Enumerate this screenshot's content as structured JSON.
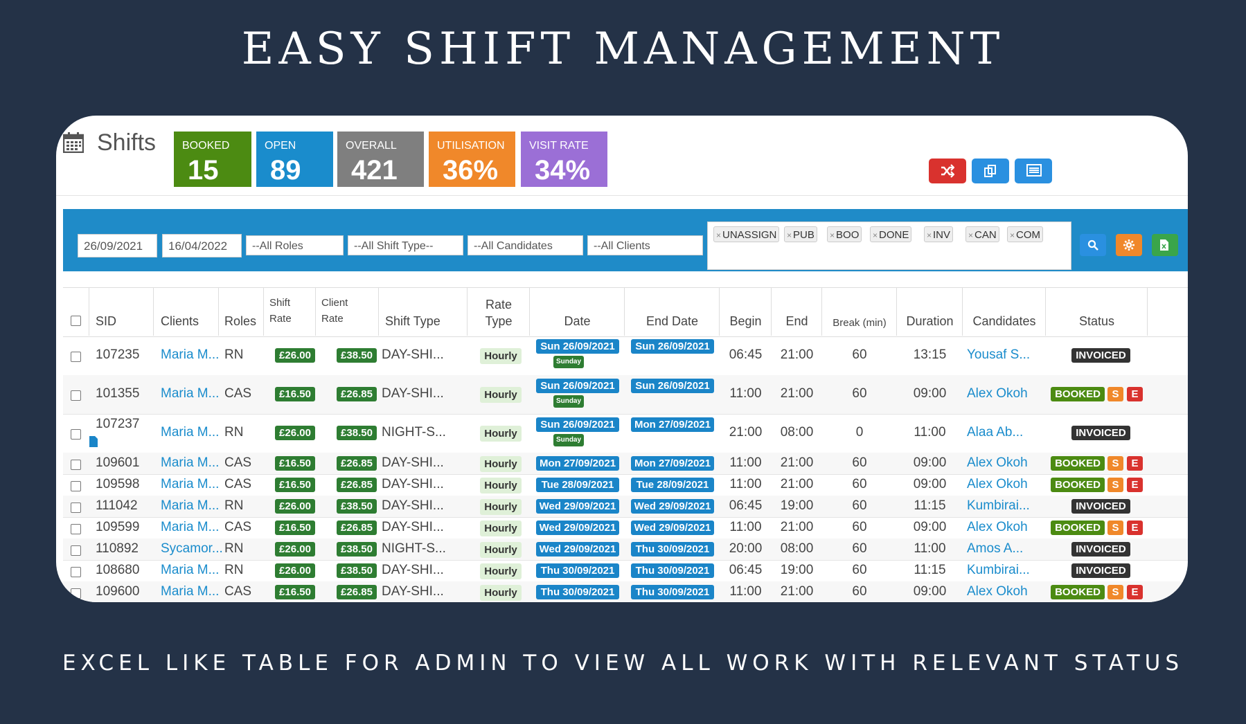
{
  "headline": "EASY SHIFT MANAGEMENT",
  "subline": "EXCEL LIKE TABLE FOR ADMIN TO VIEW ALL WORK WITH RELEVANT STATUS",
  "page": {
    "title": "Shifts",
    "icon": "calendar-icon"
  },
  "stats": [
    {
      "label": "BOOKED",
      "value": "15",
      "color": "#4c8b12"
    },
    {
      "label": "OPEN",
      "value": "89",
      "color": "#1a8ccc"
    },
    {
      "label": "OVERALL",
      "value": "421",
      "color": "#7f7f7f"
    },
    {
      "label": "UTILISATION",
      "value": "36%",
      "color": "#f0882a"
    },
    {
      "label": "VISIT RATE",
      "value": "34%",
      "color": "#9b6fd6"
    }
  ],
  "toolbar": {
    "buttons": [
      {
        "icon": "shuffle-icon",
        "color": "#d9322e"
      },
      {
        "icon": "copy-icon",
        "color": "#2a90e0"
      },
      {
        "icon": "list-icon",
        "color": "#2a90e0"
      }
    ]
  },
  "filters": {
    "date_from": "26/09/2021",
    "date_to": "16/04/2022",
    "roles": "--All Roles",
    "shift_type": "--All Shift Type--",
    "candidates": "--All Candidates",
    "clients": "--All Clients",
    "status_tags": [
      "UNASSIGN",
      "PUB",
      "BOO",
      "DONE",
      "INV",
      "CAN",
      "COM"
    ],
    "tag_remove": "×",
    "buttons": [
      {
        "icon": "search-icon",
        "color": "#2a90e0"
      },
      {
        "icon": "gear-icon",
        "color": "#f0882a"
      },
      {
        "icon": "excel-export-icon",
        "color": "#3aa54a"
      }
    ]
  },
  "columns": {
    "sid": "SID",
    "clients": "Clients",
    "roles": "Roles",
    "shift_rate_1": "Shift",
    "shift_rate_2": "Rate",
    "client_rate_1": "Client",
    "client_rate_2": "Rate",
    "shift_type": "Shift Type",
    "rate_type_1": "Rate",
    "rate_type_2": "Type",
    "date": "Date",
    "end_date": "End Date",
    "begin": "Begin",
    "end": "End",
    "break": "Break (min)",
    "duration": "Duration",
    "candidates": "Candidates",
    "status": "Status"
  },
  "status_colors": {
    "BOOKED": "#4c8b12",
    "INVOICED": "#333333",
    "S": "#f0882a",
    "E": "#d9322e"
  },
  "rows": [
    {
      "sid": "107235",
      "client": "Maria M...",
      "role": "RN",
      "shift_rate": "£26.00",
      "client_rate": "£38.50",
      "shift_type": "DAY-SHI...",
      "rate_type": "Hourly",
      "date": "Sun 26/09/2021",
      "day_note": "Sunday",
      "end_date": "Sun 26/09/2021",
      "begin": "06:45",
      "end": "21:00",
      "break": "60",
      "duration": "13:15",
      "candidate": "Yousaf S...",
      "status": "INVOICED",
      "actions": []
    },
    {
      "sid": "101355",
      "client": "Maria M...",
      "role": "CAS",
      "shift_rate": "£16.50",
      "client_rate": "£26.85",
      "shift_type": "DAY-SHI...",
      "rate_type": "Hourly",
      "date": "Sun 26/09/2021",
      "day_note": "Sunday",
      "end_date": "Sun 26/09/2021",
      "begin": "11:00",
      "end": "21:00",
      "break": "60",
      "duration": "09:00",
      "candidate": "Alex Okoh",
      "status": "BOOKED",
      "actions": [
        "S",
        "E"
      ]
    },
    {
      "sid": "107237",
      "client": "Maria M...",
      "role": "RN",
      "shift_rate": "£26.00",
      "client_rate": "£38.50",
      "shift_type": "NIGHT-S...",
      "rate_type": "Hourly",
      "date": "Sun 26/09/2021",
      "day_note": "Sunday",
      "end_date": "Mon 27/09/2021",
      "begin": "21:00",
      "end": "08:00",
      "break": "0",
      "duration": "11:00",
      "candidate": "Alaa Ab...",
      "status": "INVOICED",
      "actions": [],
      "has_doc": true
    },
    {
      "sid": "109601",
      "client": "Maria M...",
      "role": "CAS",
      "shift_rate": "£16.50",
      "client_rate": "£26.85",
      "shift_type": "DAY-SHI...",
      "rate_type": "Hourly",
      "date": "Mon 27/09/2021",
      "end_date": "Mon 27/09/2021",
      "begin": "11:00",
      "end": "21:00",
      "break": "60",
      "duration": "09:00",
      "candidate": "Alex Okoh",
      "status": "BOOKED",
      "actions": [
        "S",
        "E"
      ]
    },
    {
      "sid": "109598",
      "client": "Maria M...",
      "role": "CAS",
      "shift_rate": "£16.50",
      "client_rate": "£26.85",
      "shift_type": "DAY-SHI...",
      "rate_type": "Hourly",
      "date": "Tue 28/09/2021",
      "end_date": "Tue 28/09/2021",
      "begin": "11:00",
      "end": "21:00",
      "break": "60",
      "duration": "09:00",
      "candidate": "Alex Okoh",
      "status": "BOOKED",
      "actions": [
        "S",
        "E"
      ]
    },
    {
      "sid": "111042",
      "client": "Maria M...",
      "role": "RN",
      "shift_rate": "£26.00",
      "client_rate": "£38.50",
      "shift_type": "DAY-SHI...",
      "rate_type": "Hourly",
      "date": "Wed 29/09/2021",
      "end_date": "Wed 29/09/2021",
      "begin": "06:45",
      "end": "19:00",
      "break": "60",
      "duration": "11:15",
      "candidate": "Kumbirai...",
      "status": "INVOICED",
      "actions": []
    },
    {
      "sid": "109599",
      "client": "Maria M...",
      "role": "CAS",
      "shift_rate": "£16.50",
      "client_rate": "£26.85",
      "shift_type": "DAY-SHI...",
      "rate_type": "Hourly",
      "date": "Wed 29/09/2021",
      "end_date": "Wed 29/09/2021",
      "begin": "11:00",
      "end": "21:00",
      "break": "60",
      "duration": "09:00",
      "candidate": "Alex Okoh",
      "status": "BOOKED",
      "actions": [
        "S",
        "E"
      ]
    },
    {
      "sid": "110892",
      "client": "Sycamor...",
      "role": "RN",
      "shift_rate": "£26.00",
      "client_rate": "£38.50",
      "shift_type": "NIGHT-S...",
      "rate_type": "Hourly",
      "date": "Wed 29/09/2021",
      "end_date": "Thu 30/09/2021",
      "begin": "20:00",
      "end": "08:00",
      "break": "60",
      "duration": "11:00",
      "candidate": "Amos A...",
      "status": "INVOICED",
      "actions": []
    },
    {
      "sid": "108680",
      "client": "Maria M...",
      "role": "RN",
      "shift_rate": "£26.00",
      "client_rate": "£38.50",
      "shift_type": "DAY-SHI...",
      "rate_type": "Hourly",
      "date": "Thu 30/09/2021",
      "end_date": "Thu 30/09/2021",
      "begin": "06:45",
      "end": "19:00",
      "break": "60",
      "duration": "11:15",
      "candidate": "Kumbirai...",
      "status": "INVOICED",
      "actions": []
    },
    {
      "sid": "109600",
      "client": "Maria M...",
      "role": "CAS",
      "shift_rate": "£16.50",
      "client_rate": "£26.85",
      "shift_type": "DAY-SHI...",
      "rate_type": "Hourly",
      "date": "Thu 30/09/2021",
      "end_date": "Thu 30/09/2021",
      "begin": "11:00",
      "end": "21:00",
      "break": "60",
      "duration": "09:00",
      "candidate": "Alex Okoh",
      "status": "BOOKED",
      "actions": [
        "S",
        "E"
      ]
    }
  ]
}
